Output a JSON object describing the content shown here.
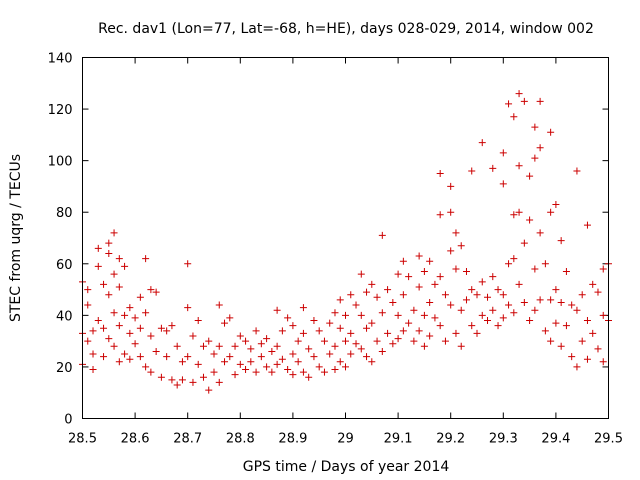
{
  "chart_data": {
    "type": "scatter",
    "title": "Rec. dav1 (Lon=77, Lat=-68, h=HE), days 028-029, 2014, window 002",
    "xlabel": "GPS time / Days of year 2014",
    "ylabel": "STEC from uqrg / TECUs",
    "xlim": [
      28.5,
      29.5
    ],
    "ylim": [
      0,
      140
    ],
    "xticks": [
      28.5,
      28.6,
      28.7,
      28.8,
      28.9,
      29,
      29.1,
      29.2,
      29.3,
      29.4,
      29.5
    ],
    "xtick_labels": [
      "28.5",
      "28.6",
      "28.7",
      "28.8",
      "28.9",
      "29",
      "29.1",
      "29.2",
      "29.3",
      "29.4",
      "29.5"
    ],
    "yticks": [
      0,
      20,
      40,
      60,
      80,
      100,
      120,
      140
    ],
    "ytick_labels": [
      "0",
      "20",
      "40",
      "60",
      "80",
      "100",
      "120",
      "140"
    ],
    "marker": "plus",
    "color": "#cc0000",
    "grid": false,
    "series": [
      {
        "name": "STEC",
        "points": [
          [
            28.5,
            53
          ],
          [
            28.5,
            33
          ],
          [
            28.5,
            21
          ],
          [
            28.51,
            50
          ],
          [
            28.51,
            44
          ],
          [
            28.51,
            30
          ],
          [
            28.52,
            34
          ],
          [
            28.52,
            25
          ],
          [
            28.52,
            19
          ],
          [
            28.53,
            66
          ],
          [
            28.53,
            59
          ],
          [
            28.53,
            38
          ],
          [
            28.54,
            52
          ],
          [
            28.54,
            35
          ],
          [
            28.54,
            24
          ],
          [
            28.55,
            68
          ],
          [
            28.55,
            64
          ],
          [
            28.55,
            48
          ],
          [
            28.55,
            31
          ],
          [
            28.56,
            72
          ],
          [
            28.56,
            56
          ],
          [
            28.56,
            41
          ],
          [
            28.56,
            28
          ],
          [
            28.57,
            62
          ],
          [
            28.57,
            51
          ],
          [
            28.57,
            36
          ],
          [
            28.57,
            22
          ],
          [
            28.58,
            59
          ],
          [
            28.58,
            40
          ],
          [
            28.58,
            25
          ],
          [
            28.59,
            43
          ],
          [
            28.59,
            33
          ],
          [
            28.59,
            23
          ],
          [
            28.6,
            39
          ],
          [
            28.6,
            29
          ],
          [
            28.61,
            47
          ],
          [
            28.61,
            35
          ],
          [
            28.61,
            24
          ],
          [
            28.62,
            62
          ],
          [
            28.62,
            41
          ],
          [
            28.62,
            20
          ],
          [
            28.63,
            50
          ],
          [
            28.63,
            32
          ],
          [
            28.63,
            18
          ],
          [
            28.64,
            49
          ],
          [
            28.64,
            26
          ],
          [
            28.65,
            35
          ],
          [
            28.65,
            16
          ],
          [
            28.66,
            34
          ],
          [
            28.66,
            24
          ],
          [
            28.67,
            36
          ],
          [
            28.67,
            15
          ],
          [
            28.68,
            28
          ],
          [
            28.68,
            13
          ],
          [
            28.69,
            22
          ],
          [
            28.69,
            15
          ],
          [
            28.7,
            60
          ],
          [
            28.7,
            43
          ],
          [
            28.7,
            24
          ],
          [
            28.71,
            32
          ],
          [
            28.71,
            14
          ],
          [
            28.72,
            38
          ],
          [
            28.72,
            21
          ],
          [
            28.73,
            28
          ],
          [
            28.73,
            16
          ],
          [
            28.74,
            30
          ],
          [
            28.74,
            11
          ],
          [
            28.75,
            25
          ],
          [
            28.75,
            18
          ],
          [
            28.76,
            44
          ],
          [
            28.76,
            28
          ],
          [
            28.76,
            14
          ],
          [
            28.77,
            37
          ],
          [
            28.77,
            22
          ],
          [
            28.78,
            39
          ],
          [
            28.78,
            24
          ],
          [
            28.79,
            28
          ],
          [
            28.79,
            17
          ],
          [
            28.8,
            32
          ],
          [
            28.8,
            21
          ],
          [
            28.81,
            30
          ],
          [
            28.81,
            19
          ],
          [
            28.82,
            27
          ],
          [
            28.82,
            22
          ],
          [
            28.83,
            34
          ],
          [
            28.83,
            18
          ],
          [
            28.84,
            29
          ],
          [
            28.84,
            24
          ],
          [
            28.85,
            31
          ],
          [
            28.85,
            20
          ],
          [
            28.86,
            26
          ],
          [
            28.86,
            18
          ],
          [
            28.87,
            42
          ],
          [
            28.87,
            28
          ],
          [
            28.87,
            21
          ],
          [
            28.88,
            34
          ],
          [
            28.88,
            23
          ],
          [
            28.89,
            39
          ],
          [
            28.89,
            19
          ],
          [
            28.9,
            36
          ],
          [
            28.9,
            25
          ],
          [
            28.9,
            17
          ],
          [
            28.91,
            30
          ],
          [
            28.91,
            22
          ],
          [
            28.92,
            43
          ],
          [
            28.92,
            33
          ],
          [
            28.92,
            18
          ],
          [
            28.93,
            27
          ],
          [
            28.93,
            16
          ],
          [
            28.94,
            38
          ],
          [
            28.94,
            24
          ],
          [
            28.95,
            34
          ],
          [
            28.95,
            20
          ],
          [
            28.96,
            30
          ],
          [
            28.96,
            18
          ],
          [
            28.97,
            37
          ],
          [
            28.97,
            25
          ],
          [
            28.98,
            41
          ],
          [
            28.98,
            28
          ],
          [
            28.98,
            19
          ],
          [
            28.99,
            46
          ],
          [
            28.99,
            35
          ],
          [
            28.99,
            22
          ],
          [
            29.0,
            40
          ],
          [
            29.0,
            30
          ],
          [
            29.0,
            20
          ],
          [
            29.01,
            48
          ],
          [
            29.01,
            33
          ],
          [
            29.01,
            25
          ],
          [
            29.02,
            44
          ],
          [
            29.02,
            29
          ],
          [
            29.03,
            56
          ],
          [
            29.03,
            40
          ],
          [
            29.03,
            27
          ],
          [
            29.04,
            49
          ],
          [
            29.04,
            35
          ],
          [
            29.04,
            24
          ],
          [
            29.05,
            52
          ],
          [
            29.05,
            37
          ],
          [
            29.05,
            22
          ],
          [
            29.06,
            47
          ],
          [
            29.06,
            30
          ],
          [
            29.07,
            71
          ],
          [
            29.07,
            41
          ],
          [
            29.07,
            26
          ],
          [
            29.08,
            50
          ],
          [
            29.08,
            33
          ],
          [
            29.09,
            45
          ],
          [
            29.09,
            29
          ],
          [
            29.1,
            56
          ],
          [
            29.1,
            40
          ],
          [
            29.1,
            31
          ],
          [
            29.11,
            61
          ],
          [
            29.11,
            48
          ],
          [
            29.11,
            34
          ],
          [
            29.12,
            55
          ],
          [
            29.12,
            37
          ],
          [
            29.13,
            42
          ],
          [
            29.13,
            30
          ],
          [
            29.14,
            63
          ],
          [
            29.14,
            51
          ],
          [
            29.14,
            34
          ],
          [
            29.15,
            57
          ],
          [
            29.15,
            40
          ],
          [
            29.15,
            28
          ],
          [
            29.16,
            61
          ],
          [
            29.16,
            45
          ],
          [
            29.16,
            32
          ],
          [
            29.17,
            52
          ],
          [
            29.17,
            39
          ],
          [
            29.18,
            95
          ],
          [
            29.18,
            79
          ],
          [
            29.18,
            55
          ],
          [
            29.18,
            36
          ],
          [
            29.19,
            48
          ],
          [
            29.19,
            30
          ],
          [
            29.2,
            90
          ],
          [
            29.2,
            80
          ],
          [
            29.2,
            65
          ],
          [
            29.2,
            44
          ],
          [
            29.21,
            72
          ],
          [
            29.21,
            58
          ],
          [
            29.21,
            33
          ],
          [
            29.22,
            67
          ],
          [
            29.22,
            42
          ],
          [
            29.22,
            28
          ],
          [
            29.23,
            57
          ],
          [
            29.23,
            46
          ],
          [
            29.24,
            96
          ],
          [
            29.24,
            50
          ],
          [
            29.24,
            36
          ],
          [
            29.25,
            48
          ],
          [
            29.25,
            33
          ],
          [
            29.26,
            107
          ],
          [
            29.26,
            53
          ],
          [
            29.26,
            40
          ],
          [
            29.27,
            47
          ],
          [
            29.27,
            38
          ],
          [
            29.28,
            97
          ],
          [
            29.28,
            55
          ],
          [
            29.28,
            42
          ],
          [
            29.29,
            50
          ],
          [
            29.29,
            36
          ],
          [
            29.3,
            91
          ],
          [
            29.3,
            103
          ],
          [
            29.3,
            48
          ],
          [
            29.3,
            39
          ],
          [
            29.31,
            122
          ],
          [
            29.31,
            60
          ],
          [
            29.31,
            44
          ],
          [
            29.32,
            117
          ],
          [
            29.32,
            79
          ],
          [
            29.32,
            62
          ],
          [
            29.32,
            41
          ],
          [
            29.33,
            126
          ],
          [
            29.33,
            98
          ],
          [
            29.33,
            80
          ],
          [
            29.33,
            52
          ],
          [
            29.34,
            123
          ],
          [
            29.34,
            68
          ],
          [
            29.34,
            45
          ],
          [
            29.35,
            94
          ],
          [
            29.35,
            77
          ],
          [
            29.35,
            38
          ],
          [
            29.36,
            113
          ],
          [
            29.36,
            101
          ],
          [
            29.36,
            58
          ],
          [
            29.36,
            42
          ],
          [
            29.37,
            123
          ],
          [
            29.37,
            105
          ],
          [
            29.37,
            72
          ],
          [
            29.37,
            46
          ],
          [
            29.38,
            60
          ],
          [
            29.38,
            34
          ],
          [
            29.39,
            111
          ],
          [
            29.39,
            80
          ],
          [
            29.39,
            46
          ],
          [
            29.39,
            30
          ],
          [
            29.4,
            83
          ],
          [
            29.4,
            50
          ],
          [
            29.4,
            37
          ],
          [
            29.41,
            69
          ],
          [
            29.41,
            45
          ],
          [
            29.41,
            28
          ],
          [
            29.42,
            57
          ],
          [
            29.42,
            36
          ],
          [
            29.43,
            44
          ],
          [
            29.43,
            24
          ],
          [
            29.44,
            96
          ],
          [
            29.44,
            42
          ],
          [
            29.44,
            20
          ],
          [
            29.45,
            48
          ],
          [
            29.45,
            30
          ],
          [
            29.46,
            75
          ],
          [
            29.46,
            38
          ],
          [
            29.46,
            23
          ],
          [
            29.47,
            52
          ],
          [
            29.47,
            33
          ],
          [
            29.48,
            49
          ],
          [
            29.48,
            27
          ],
          [
            29.49,
            58
          ],
          [
            29.49,
            40
          ],
          [
            29.49,
            22
          ],
          [
            29.5,
            60
          ],
          [
            29.5,
            38
          ]
        ]
      }
    ]
  }
}
